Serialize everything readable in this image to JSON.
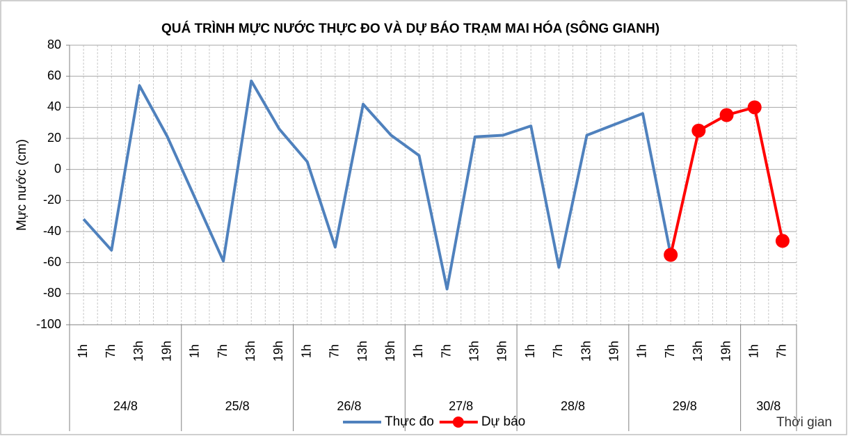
{
  "chart_data": {
    "type": "line",
    "title": "QUÁ TRÌNH MỰC NƯỚC THỰC ĐO VÀ DỰ BÁO TRẠM MAI HÓA (SÔNG GIANH)",
    "y_label": "Mực nước (cm)",
    "x_label": "Thời gian",
    "category_groups": [
      {
        "label": "24/8",
        "categories": [
          "1h",
          "7h",
          "13h",
          "19h"
        ]
      },
      {
        "label": "25/8",
        "categories": [
          "1h",
          "7h",
          "13h",
          "19h"
        ]
      },
      {
        "label": "26/8",
        "categories": [
          "1h",
          "7h",
          "13h",
          "19h"
        ]
      },
      {
        "label": "27/8",
        "categories": [
          "1h",
          "7h",
          "13h",
          "19h"
        ]
      },
      {
        "label": "28/8",
        "categories": [
          "1h",
          "7h",
          "13h",
          "19h"
        ]
      },
      {
        "label": "29/8",
        "categories": [
          "1h",
          "7h",
          "13h",
          "19h"
        ]
      },
      {
        "label": "30/8",
        "categories": [
          "1h",
          "7h"
        ]
      }
    ],
    "series": [
      {
        "name": "Thực đo",
        "color": "#4f81bd",
        "markers": false,
        "values": [
          -32,
          -52,
          54,
          21,
          -19,
          -59,
          57,
          26,
          5,
          -50,
          42,
          22,
          9,
          -77,
          21,
          22,
          28,
          -63,
          22,
          29,
          36,
          -55,
          null,
          null,
          null,
          null
        ]
      },
      {
        "name": "Dự báo",
        "color": "#ff0000",
        "markers": true,
        "values": [
          null,
          null,
          null,
          null,
          null,
          null,
          null,
          null,
          null,
          null,
          null,
          null,
          null,
          null,
          null,
          null,
          null,
          null,
          null,
          null,
          null,
          -55,
          25,
          35,
          40,
          -46
        ]
      }
    ],
    "ylim": [
      -100,
      80
    ],
    "yticks": [
      -100,
      -80,
      -60,
      -40,
      -20,
      0,
      20,
      40,
      60,
      80
    ],
    "grid": true
  }
}
